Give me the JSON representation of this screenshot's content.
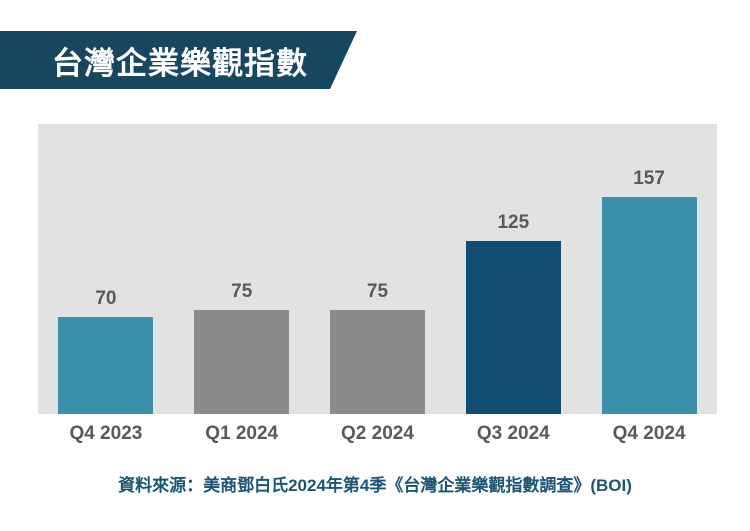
{
  "title": {
    "label": "台灣企業樂觀指數"
  },
  "colors": {
    "banner": "#17465f",
    "plot_background": "#e2e2e2",
    "bar_teal": "#3b90ac",
    "bar_gray": "#8a8a8a",
    "bar_navy": "#114d70",
    "label_text": "#58595b",
    "source_text": "#1a5674"
  },
  "chart_data": {
    "type": "bar",
    "title": "台灣企業樂觀指數",
    "categories": [
      "Q4 2023",
      "Q1 2024",
      "Q2 2024",
      "Q3 2024",
      "Q4 2024"
    ],
    "values": [
      70,
      75,
      75,
      125,
      157
    ],
    "bar_colors": [
      "#3b90ac",
      "#8a8a8a",
      "#8a8a8a",
      "#114d70",
      "#3b90ac"
    ],
    "xlabel": "",
    "ylabel": "",
    "ylim": [
      0,
      210
    ],
    "grid": false,
    "data_labels": true,
    "legend": false
  },
  "source": {
    "label": "資料來源：美商鄧白氏2024年第4季《台灣企業樂觀指數調查》(BOI)"
  }
}
